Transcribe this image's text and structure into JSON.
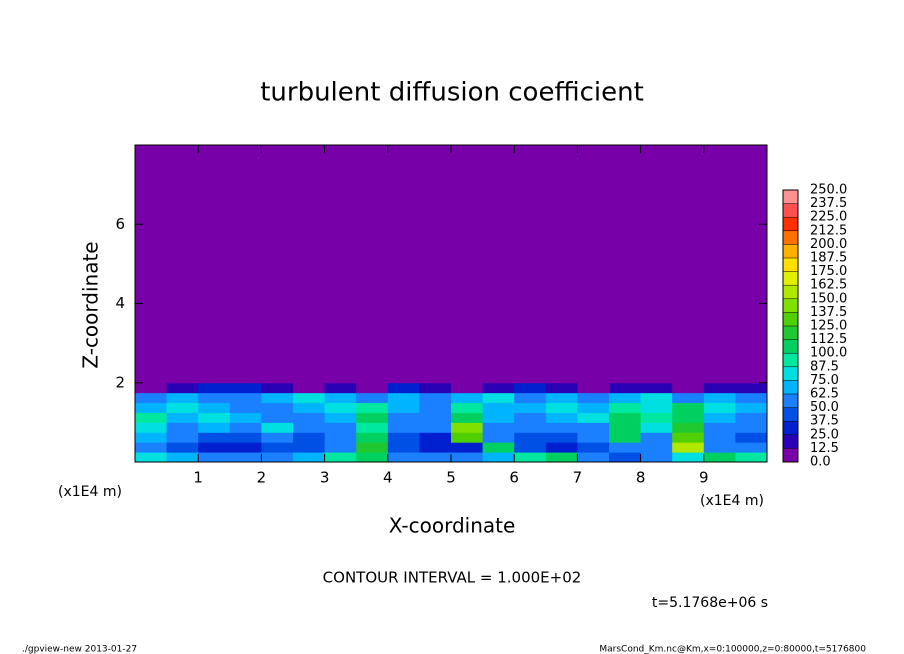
{
  "chart_data": {
    "type": "heatmap",
    "title": "turbulent diffusion coefficient",
    "x_label": "X-coordinate",
    "y_label": "Z-coordinate",
    "x_unit_left": "(x1E4 m)",
    "x_unit_right": "(x1E4 m)",
    "contour_note": "CONTOUR INTERVAL = 1.000E+02",
    "time_note": "t=5.1768e+06 s",
    "footer_left": "./gpview-new  2013-01-27",
    "footer_right": "MarsCond_Km.nc@Km,x=0:100000,z=0:80000,t=5176800",
    "xlim": [
      0,
      10
    ],
    "ylim": [
      0,
      8
    ],
    "xticks": [
      1,
      2,
      3,
      4,
      5,
      6,
      7,
      8,
      9
    ],
    "yticks": [
      2,
      4,
      6
    ],
    "x_edges": [
      0,
      0.5,
      1,
      1.5,
      2,
      2.5,
      3,
      3.5,
      4,
      4.5,
      5,
      5.5,
      6,
      6.5,
      7,
      7.5,
      8,
      8.5,
      9,
      9.5,
      10
    ],
    "y_edges": [
      0,
      0.25,
      0.5,
      0.75,
      1,
      1.25,
      1.5,
      1.75,
      2,
      8
    ],
    "values": [
      [
        80,
        70,
        60,
        50,
        60,
        70,
        90,
        110,
        60,
        50,
        60,
        70,
        90,
        110,
        60,
        40,
        60,
        80,
        110,
        90
      ],
      [
        60,
        40,
        30,
        30,
        40,
        40,
        60,
        120,
        40,
        30,
        30,
        110,
        40,
        30,
        40,
        60,
        50,
        150,
        50,
        60
      ],
      [
        70,
        50,
        40,
        40,
        50,
        40,
        50,
        110,
        40,
        30,
        130,
        50,
        40,
        40,
        50,
        100,
        60,
        130,
        50,
        40
      ],
      [
        80,
        60,
        70,
        60,
        80,
        60,
        50,
        90,
        60,
        50,
        140,
        60,
        50,
        60,
        60,
        110,
        80,
        120,
        60,
        50
      ],
      [
        90,
        70,
        80,
        70,
        60,
        50,
        70,
        100,
        60,
        60,
        110,
        70,
        60,
        70,
        80,
        100,
        90,
        110,
        70,
        60
      ],
      [
        70,
        80,
        70,
        60,
        60,
        70,
        80,
        90,
        70,
        60,
        90,
        70,
        70,
        80,
        70,
        90,
        80,
        100,
        80,
        70
      ],
      [
        60,
        70,
        60,
        60,
        70,
        80,
        70,
        60,
        70,
        60,
        70,
        80,
        60,
        70,
        60,
        70,
        80,
        60,
        70,
        60
      ],
      [
        10,
        20,
        30,
        30,
        20,
        10,
        20,
        10,
        30,
        20,
        10,
        20,
        30,
        20,
        10,
        20,
        20,
        10,
        20,
        15
      ],
      [
        0,
        0,
        0,
        0,
        0,
        0,
        0,
        0,
        0,
        0,
        0,
        0,
        0,
        0,
        0,
        0,
        0,
        0,
        0,
        0
      ]
    ],
    "colorbar": {
      "levels": [
        {
          "value": 0,
          "label": "0.0"
        },
        {
          "value": 12.5,
          "label": "12.5"
        },
        {
          "value": 25,
          "label": "25.0"
        },
        {
          "value": 37.5,
          "label": "37.5"
        },
        {
          "value": 50,
          "label": "50.0"
        },
        {
          "value": 62.5,
          "label": "62.5"
        },
        {
          "value": 75,
          "label": "75.0"
        },
        {
          "value": 87.5,
          "label": "87.5"
        },
        {
          "value": 100,
          "label": "100.0"
        },
        {
          "value": 112.5,
          "label": "112.5"
        },
        {
          "value": 125,
          "label": "125.0"
        },
        {
          "value": 137.5,
          "label": "137.5"
        },
        {
          "value": 150,
          "label": "150.0"
        },
        {
          "value": 162.5,
          "label": "162.5"
        },
        {
          "value": 175,
          "label": "175.0"
        },
        {
          "value": 187.5,
          "label": "187.5"
        },
        {
          "value": 200,
          "label": "200.0"
        },
        {
          "value": 212.5,
          "label": "212.5"
        },
        {
          "value": 225,
          "label": "225.0"
        },
        {
          "value": 237.5,
          "label": "237.5"
        },
        {
          "value": 250,
          "label": "250.0"
        }
      ],
      "colors": [
        "#7800a8",
        "#2a00b4",
        "#0020d0",
        "#0050e6",
        "#1a80ff",
        "#00b4ff",
        "#00e0e0",
        "#00e8a0",
        "#00d060",
        "#20c830",
        "#50d000",
        "#80e000",
        "#b0e800",
        "#e0f000",
        "#ffe000",
        "#ffb000",
        "#ff7000",
        "#ff3000",
        "#ff5050",
        "#ff9090"
      ]
    }
  }
}
